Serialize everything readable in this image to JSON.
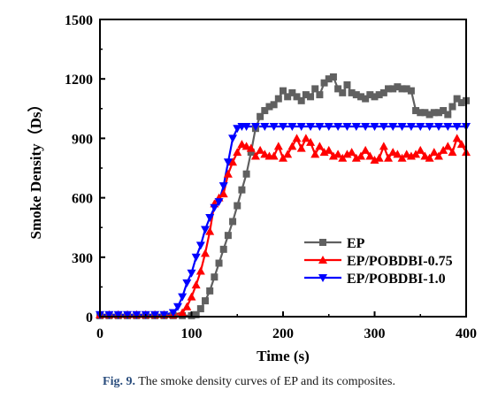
{
  "chart_data": {
    "type": "line",
    "title": "",
    "xlabel": "Time (s)",
    "ylabel": "Smoke Density（Ds）",
    "xlim": [
      0,
      400
    ],
    "ylim": [
      0,
      1500
    ],
    "xticks": [
      0,
      100,
      200,
      300,
      400
    ],
    "yticks": [
      0,
      300,
      600,
      900,
      1200,
      1500
    ],
    "grid": false,
    "legend_position": "lower-right",
    "series": [
      {
        "name": "EP",
        "color": "#606060",
        "marker": "square",
        "x": [
          0,
          10,
          20,
          30,
          40,
          50,
          60,
          70,
          80,
          90,
          100,
          105,
          110,
          115,
          120,
          125,
          130,
          135,
          140,
          145,
          150,
          155,
          160,
          165,
          170,
          175,
          180,
          185,
          190,
          195,
          200,
          205,
          210,
          215,
          220,
          225,
          230,
          235,
          240,
          245,
          250,
          255,
          260,
          265,
          270,
          275,
          280,
          285,
          290,
          295,
          300,
          305,
          310,
          315,
          320,
          325,
          330,
          335,
          340,
          345,
          350,
          355,
          360,
          365,
          370,
          375,
          380,
          385,
          390,
          395,
          400
        ],
        "y": [
          5,
          5,
          5,
          5,
          5,
          5,
          5,
          5,
          5,
          5,
          5,
          10,
          40,
          80,
          130,
          200,
          270,
          340,
          410,
          480,
          560,
          640,
          720,
          830,
          950,
          1010,
          1040,
          1060,
          1070,
          1100,
          1140,
          1110,
          1130,
          1110,
          1090,
          1120,
          1110,
          1150,
          1120,
          1180,
          1200,
          1210,
          1150,
          1130,
          1170,
          1130,
          1120,
          1110,
          1100,
          1120,
          1110,
          1120,
          1130,
          1150,
          1150,
          1160,
          1150,
          1150,
          1140,
          1040,
          1030,
          1030,
          1020,
          1030,
          1030,
          1040,
          1020,
          1060,
          1100,
          1080,
          1090
        ]
      },
      {
        "name": "EP/POBDBI-0.75",
        "color": "#ff0000",
        "marker": "triangle-up",
        "x": [
          0,
          10,
          20,
          30,
          40,
          50,
          60,
          70,
          80,
          90,
          95,
          100,
          105,
          110,
          115,
          120,
          125,
          130,
          135,
          140,
          145,
          150,
          155,
          160,
          165,
          170,
          175,
          180,
          185,
          190,
          195,
          200,
          205,
          210,
          215,
          220,
          225,
          230,
          235,
          240,
          245,
          250,
          255,
          260,
          265,
          270,
          275,
          280,
          285,
          290,
          295,
          300,
          305,
          310,
          315,
          320,
          325,
          330,
          335,
          340,
          345,
          350,
          355,
          360,
          365,
          370,
          375,
          380,
          385,
          390,
          395,
          400
        ],
        "y": [
          10,
          10,
          10,
          10,
          10,
          10,
          10,
          10,
          10,
          20,
          50,
          100,
          160,
          230,
          320,
          430,
          570,
          600,
          620,
          720,
          780,
          830,
          870,
          860,
          850,
          810,
          840,
          820,
          810,
          810,
          860,
          800,
          820,
          860,
          900,
          850,
          900,
          880,
          820,
          860,
          830,
          840,
          810,
          820,
          800,
          820,
          830,
          800,
          810,
          840,
          810,
          790,
          800,
          860,
          800,
          830,
          820,
          800,
          820,
          810,
          820,
          840,
          810,
          800,
          830,
          810,
          840,
          860,
          830,
          900,
          870,
          830
        ]
      },
      {
        "name": "EP/POBDBI-1.0",
        "color": "#0000ff",
        "marker": "triangle-down",
        "x": [
          0,
          10,
          20,
          30,
          40,
          50,
          60,
          70,
          80,
          85,
          90,
          95,
          100,
          105,
          110,
          115,
          120,
          125,
          130,
          135,
          140,
          145,
          150,
          155,
          160,
          170,
          180,
          190,
          200,
          210,
          220,
          230,
          240,
          250,
          260,
          270,
          280,
          290,
          300,
          310,
          320,
          330,
          340,
          350,
          360,
          370,
          380,
          390,
          400
        ],
        "y": [
          10,
          10,
          10,
          10,
          10,
          10,
          10,
          10,
          20,
          50,
          100,
          170,
          220,
          300,
          360,
          440,
          500,
          550,
          580,
          660,
          780,
          900,
          950,
          960,
          960,
          960,
          960,
          960,
          960,
          960,
          960,
          960,
          960,
          960,
          960,
          960,
          960,
          960,
          960,
          960,
          960,
          960,
          960,
          960,
          960,
          960,
          960,
          960,
          960
        ]
      }
    ]
  },
  "caption": {
    "label": "Fig. 9.",
    "text": "The smoke density curves of EP and its composites."
  }
}
